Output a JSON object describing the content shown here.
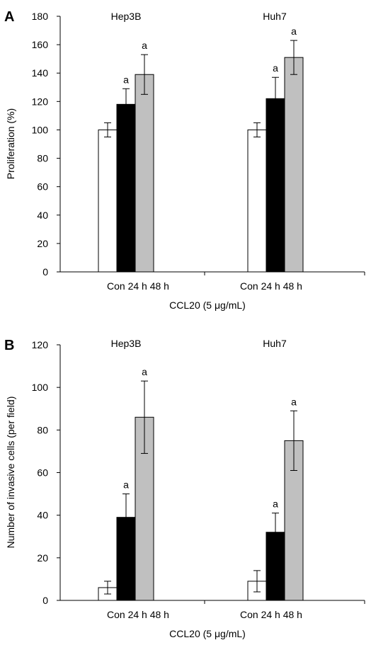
{
  "chart_data": [
    {
      "type": "bar",
      "panel_label": "A",
      "ylabel": "Proliferation (%)",
      "xlabel": "CCL20 (5 μg/mL)",
      "ylim": [
        0,
        180
      ],
      "yticks": [
        0,
        20,
        40,
        60,
        80,
        100,
        120,
        140,
        160,
        180
      ],
      "groups": [
        "Hep3B",
        "Huh7"
      ],
      "categories": [
        "Con",
        "24 h",
        "48 h"
      ],
      "category_label": "Con 24 h 48 h",
      "colors": [
        "#ffffff",
        "#000000",
        "#c0c0c0"
      ],
      "values": [
        [
          100,
          118,
          139
        ],
        [
          100,
          122,
          151
        ]
      ],
      "errors": [
        [
          5,
          11,
          14
        ],
        [
          5,
          15,
          12
        ]
      ],
      "significance": [
        [
          "",
          "a",
          "a"
        ],
        [
          "",
          "a",
          "a"
        ]
      ]
    },
    {
      "type": "bar",
      "panel_label": "B",
      "ylabel": "Number of invasive cells (per field)",
      "xlabel": "CCL20 (5 μg/mL)",
      "ylim": [
        0,
        120
      ],
      "yticks": [
        0,
        20,
        40,
        60,
        80,
        100,
        120
      ],
      "groups": [
        "Hep3B",
        "Huh7"
      ],
      "categories": [
        "Con",
        "24 h",
        "48 h"
      ],
      "category_label": "Con 24 h 48 h",
      "colors": [
        "#ffffff",
        "#000000",
        "#c0c0c0"
      ],
      "values": [
        [
          6,
          39,
          86
        ],
        [
          9,
          32,
          75
        ]
      ],
      "errors": [
        [
          3,
          11,
          17
        ],
        [
          5,
          9,
          14
        ]
      ],
      "significance": [
        [
          "",
          "a",
          "a"
        ],
        [
          "",
          "a",
          "a"
        ]
      ]
    }
  ]
}
